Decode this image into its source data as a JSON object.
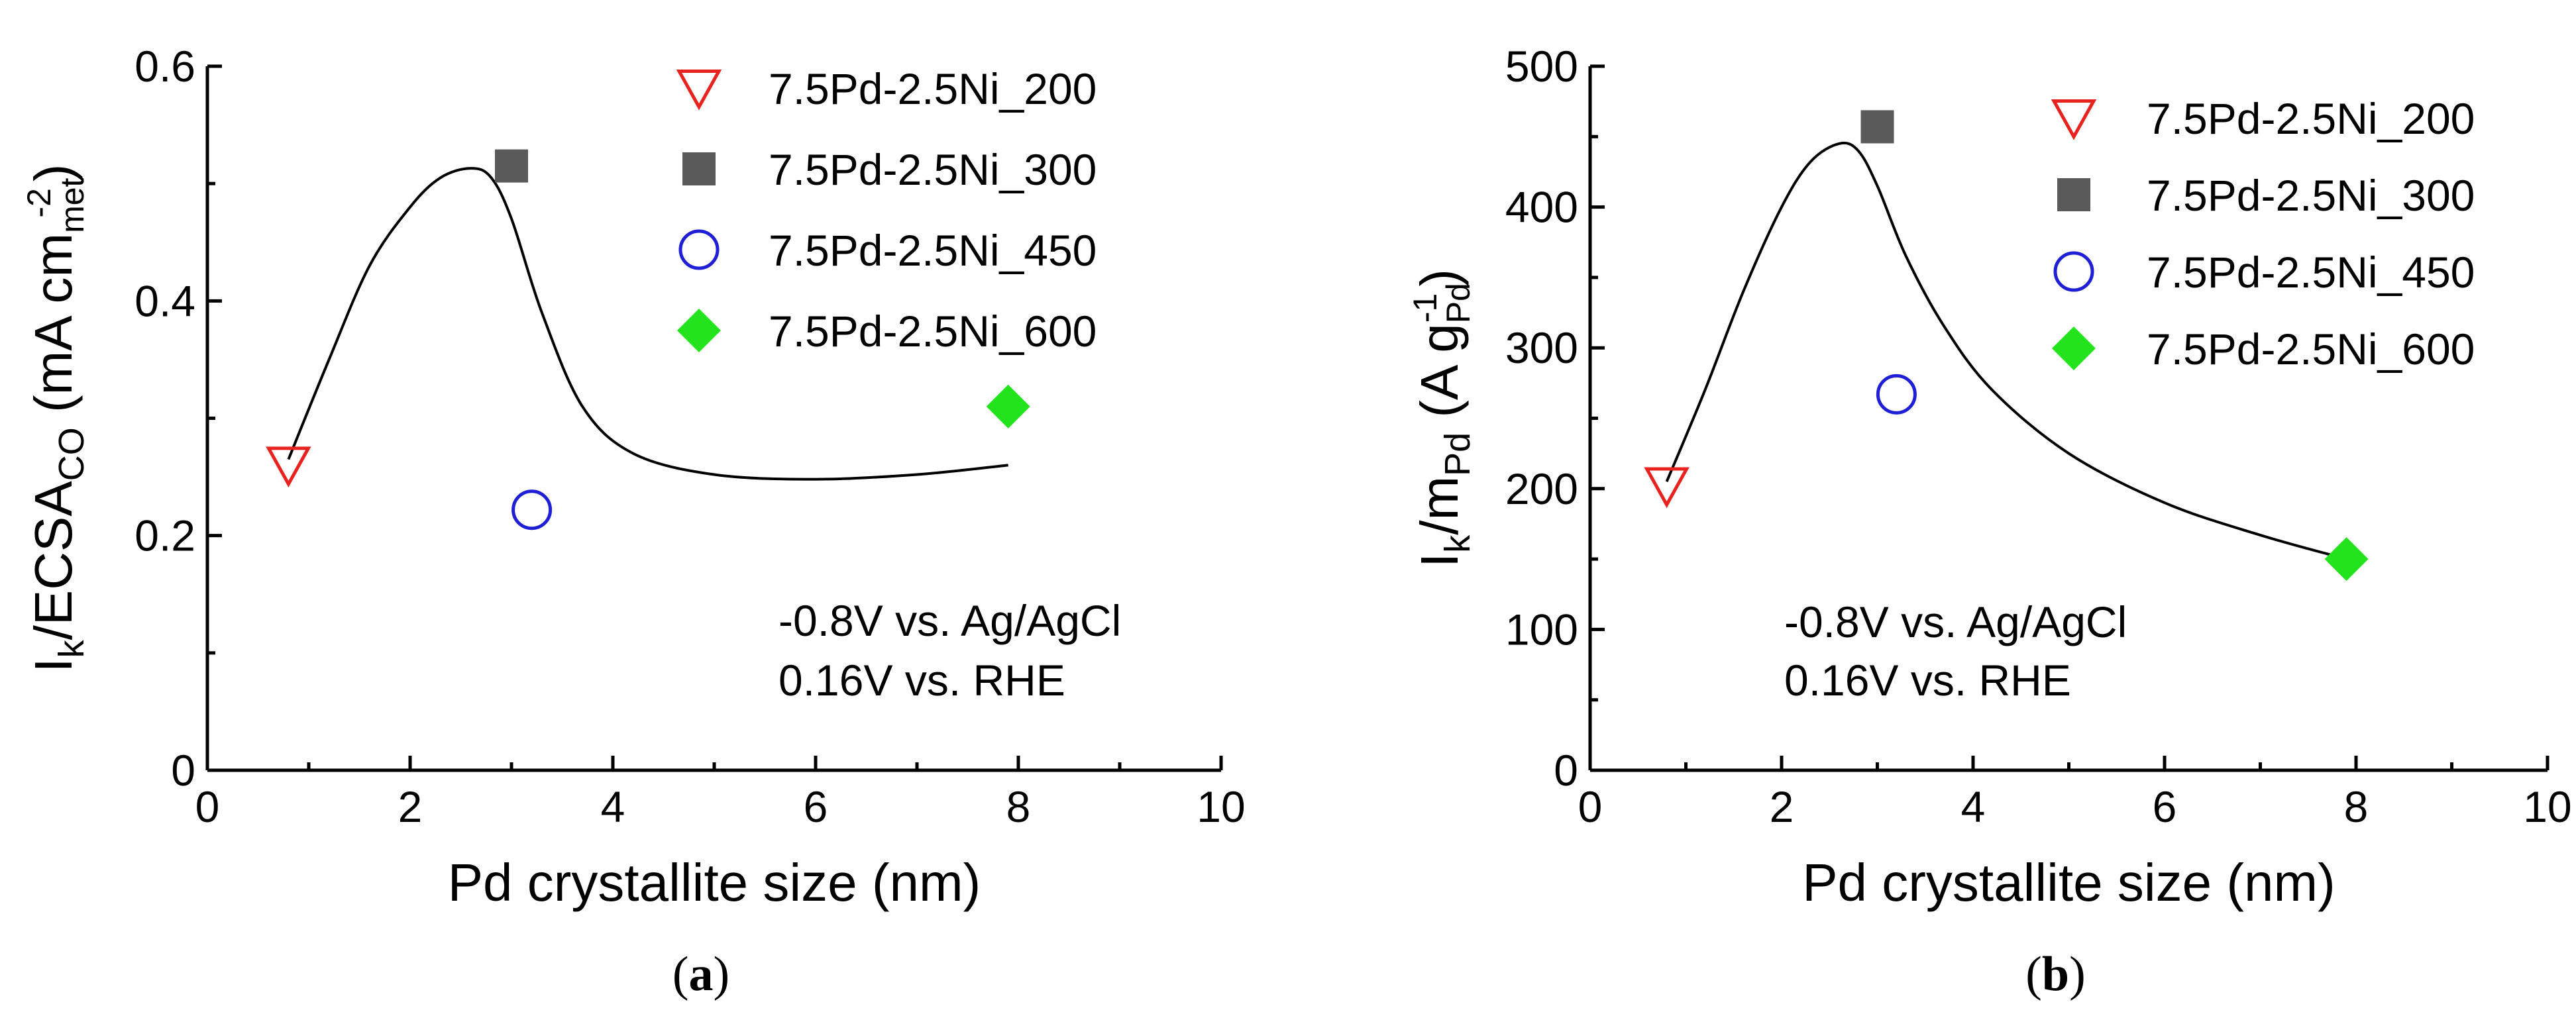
{
  "chart_data": [
    {
      "type": "scatter",
      "panel": "a",
      "caption": "(a)",
      "caption_letter": "a",
      "xlabel": "Pd crystallite size (nm)",
      "ylabel": {
        "main": "I",
        "sub1": "k",
        "mid": "/ECSA",
        "sub2": "CO",
        "unit_open": " (mA cm",
        "sub3": "met",
        "sup": "-2",
        "unit_close": ")"
      },
      "xlim": [
        0,
        10
      ],
      "ylim": [
        0,
        0.6
      ],
      "xticks": [
        0,
        2,
        4,
        6,
        8,
        10
      ],
      "yticks": [
        0,
        0.2,
        0.4,
        0.6
      ],
      "xtick_labels": [
        "0",
        "2",
        "4",
        "6",
        "8",
        "10"
      ],
      "ytick_labels": [
        "0",
        "0.2",
        "0.4",
        "0.6"
      ],
      "series": [
        {
          "name": "7.5Pd-2.5Ni_200",
          "marker": "triangle-down-open",
          "color": "#e8231f",
          "x": 0.8,
          "y": 0.26
        },
        {
          "name": "7.5Pd-2.5Ni_300",
          "marker": "square-filled",
          "color": "#5a5a5a",
          "x": 3.0,
          "y": 0.515
        },
        {
          "name": "7.5Pd-2.5Ni_450",
          "marker": "circle-open",
          "color": "#1f1fd6",
          "x": 3.2,
          "y": 0.222
        },
        {
          "name": "7.5Pd-2.5Ni_600",
          "marker": "diamond-filled",
          "color": "#22e31c",
          "x": 7.9,
          "y": 0.31
        }
      ],
      "fit_curve": {
        "x": [
          0.8,
          1.2,
          1.6,
          2.0,
          2.3,
          2.6,
          2.8,
          3.0,
          3.3,
          3.7,
          4.2,
          5.0,
          6.0,
          7.0,
          7.9
        ],
        "y": [
          0.265,
          0.35,
          0.43,
          0.48,
          0.505,
          0.513,
          0.505,
          0.47,
          0.39,
          0.31,
          0.27,
          0.252,
          0.248,
          0.252,
          0.26
        ]
      },
      "annotations": [
        "-0.8V vs. Ag/AgCl",
        "0.16V vs. RHE"
      ]
    },
    {
      "type": "scatter",
      "panel": "b",
      "caption": "(b)",
      "caption_letter": "b",
      "xlabel": "Pd crystallite size (nm)",
      "ylabel": {
        "main": "I",
        "sub1": "k",
        "mid": "/m",
        "sub2": "Pd",
        "unit_open": " (A g",
        "sub3": "Pd",
        "sup": "-1",
        "unit_close": ")"
      },
      "xlim": [
        0,
        10
      ],
      "ylim": [
        0,
        500
      ],
      "xticks": [
        0,
        2,
        4,
        6,
        8,
        10
      ],
      "yticks": [
        0,
        100,
        200,
        300,
        400,
        500
      ],
      "xtick_labels": [
        "0",
        "2",
        "4",
        "6",
        "8",
        "10"
      ],
      "ytick_labels": [
        "0",
        "100",
        "200",
        "300",
        "400",
        "500"
      ],
      "series": [
        {
          "name": "7.5Pd-2.5Ni_200",
          "marker": "triangle-down-open",
          "color": "#e8231f",
          "x": 0.8,
          "y": 202
        },
        {
          "name": "7.5Pd-2.5Ni_300",
          "marker": "square-filled",
          "color": "#5a5a5a",
          "x": 3.0,
          "y": 457
        },
        {
          "name": "7.5Pd-2.5Ni_450",
          "marker": "circle-open",
          "color": "#1f1fd6",
          "x": 3.2,
          "y": 267
        },
        {
          "name": "7.5Pd-2.5Ni_600",
          "marker": "diamond-filled",
          "color": "#22e31c",
          "x": 7.9,
          "y": 150
        }
      ],
      "fit_curve": {
        "x": [
          0.8,
          1.2,
          1.6,
          2.0,
          2.3,
          2.6,
          2.8,
          3.0,
          3.3,
          3.7,
          4.2,
          5.0,
          6.0,
          7.0,
          7.9
        ],
        "y": [
          205,
          270,
          340,
          400,
          432,
          445,
          440,
          415,
          365,
          315,
          270,
          225,
          190,
          167,
          150
        ]
      },
      "annotations": [
        "-0.8V vs. Ag/AgCl",
        "0.16V vs. RHE"
      ]
    }
  ]
}
